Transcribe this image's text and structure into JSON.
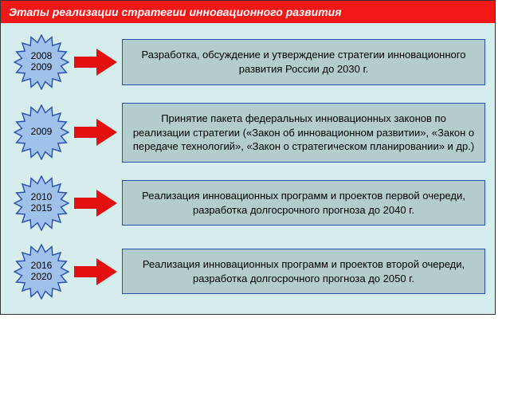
{
  "title": "Этапы реализации стратегии инновационного развития",
  "colors": {
    "header_bg": "#f31818",
    "header_text": "#ffffff",
    "container_bg": "#d5eded",
    "badge_fill": "#a0c2ea",
    "badge_stroke": "#2a4db0",
    "arrow_fill": "#e31010",
    "box_bg": "#b2cdcc",
    "box_border": "#2a4db0",
    "text": "#000000"
  },
  "stages": [
    {
      "years": [
        "2008",
        "2009"
      ],
      "text": "Разработка, обсуждение и утверждение стратегии инновационного развития России до 2030 г."
    },
    {
      "years": [
        "2009"
      ],
      "text": "Принятие пакета федеральных инновационных законов по реализации стратегии («Закон об инновационном развитии», «Закон о передаче технологий», «Закон о стратегическом планировании» и др.)"
    },
    {
      "years": [
        "2010",
        "2015"
      ],
      "text": "Реализация инновационных программ и проектов первой очереди, разработка долгосрочного прогноза до 2040 г."
    },
    {
      "years": [
        "2016",
        "2020"
      ],
      "text": "Реализация инновационных программ и проектов второй очереди, разработка долгосрочного прогноза до 2050 г."
    }
  ]
}
